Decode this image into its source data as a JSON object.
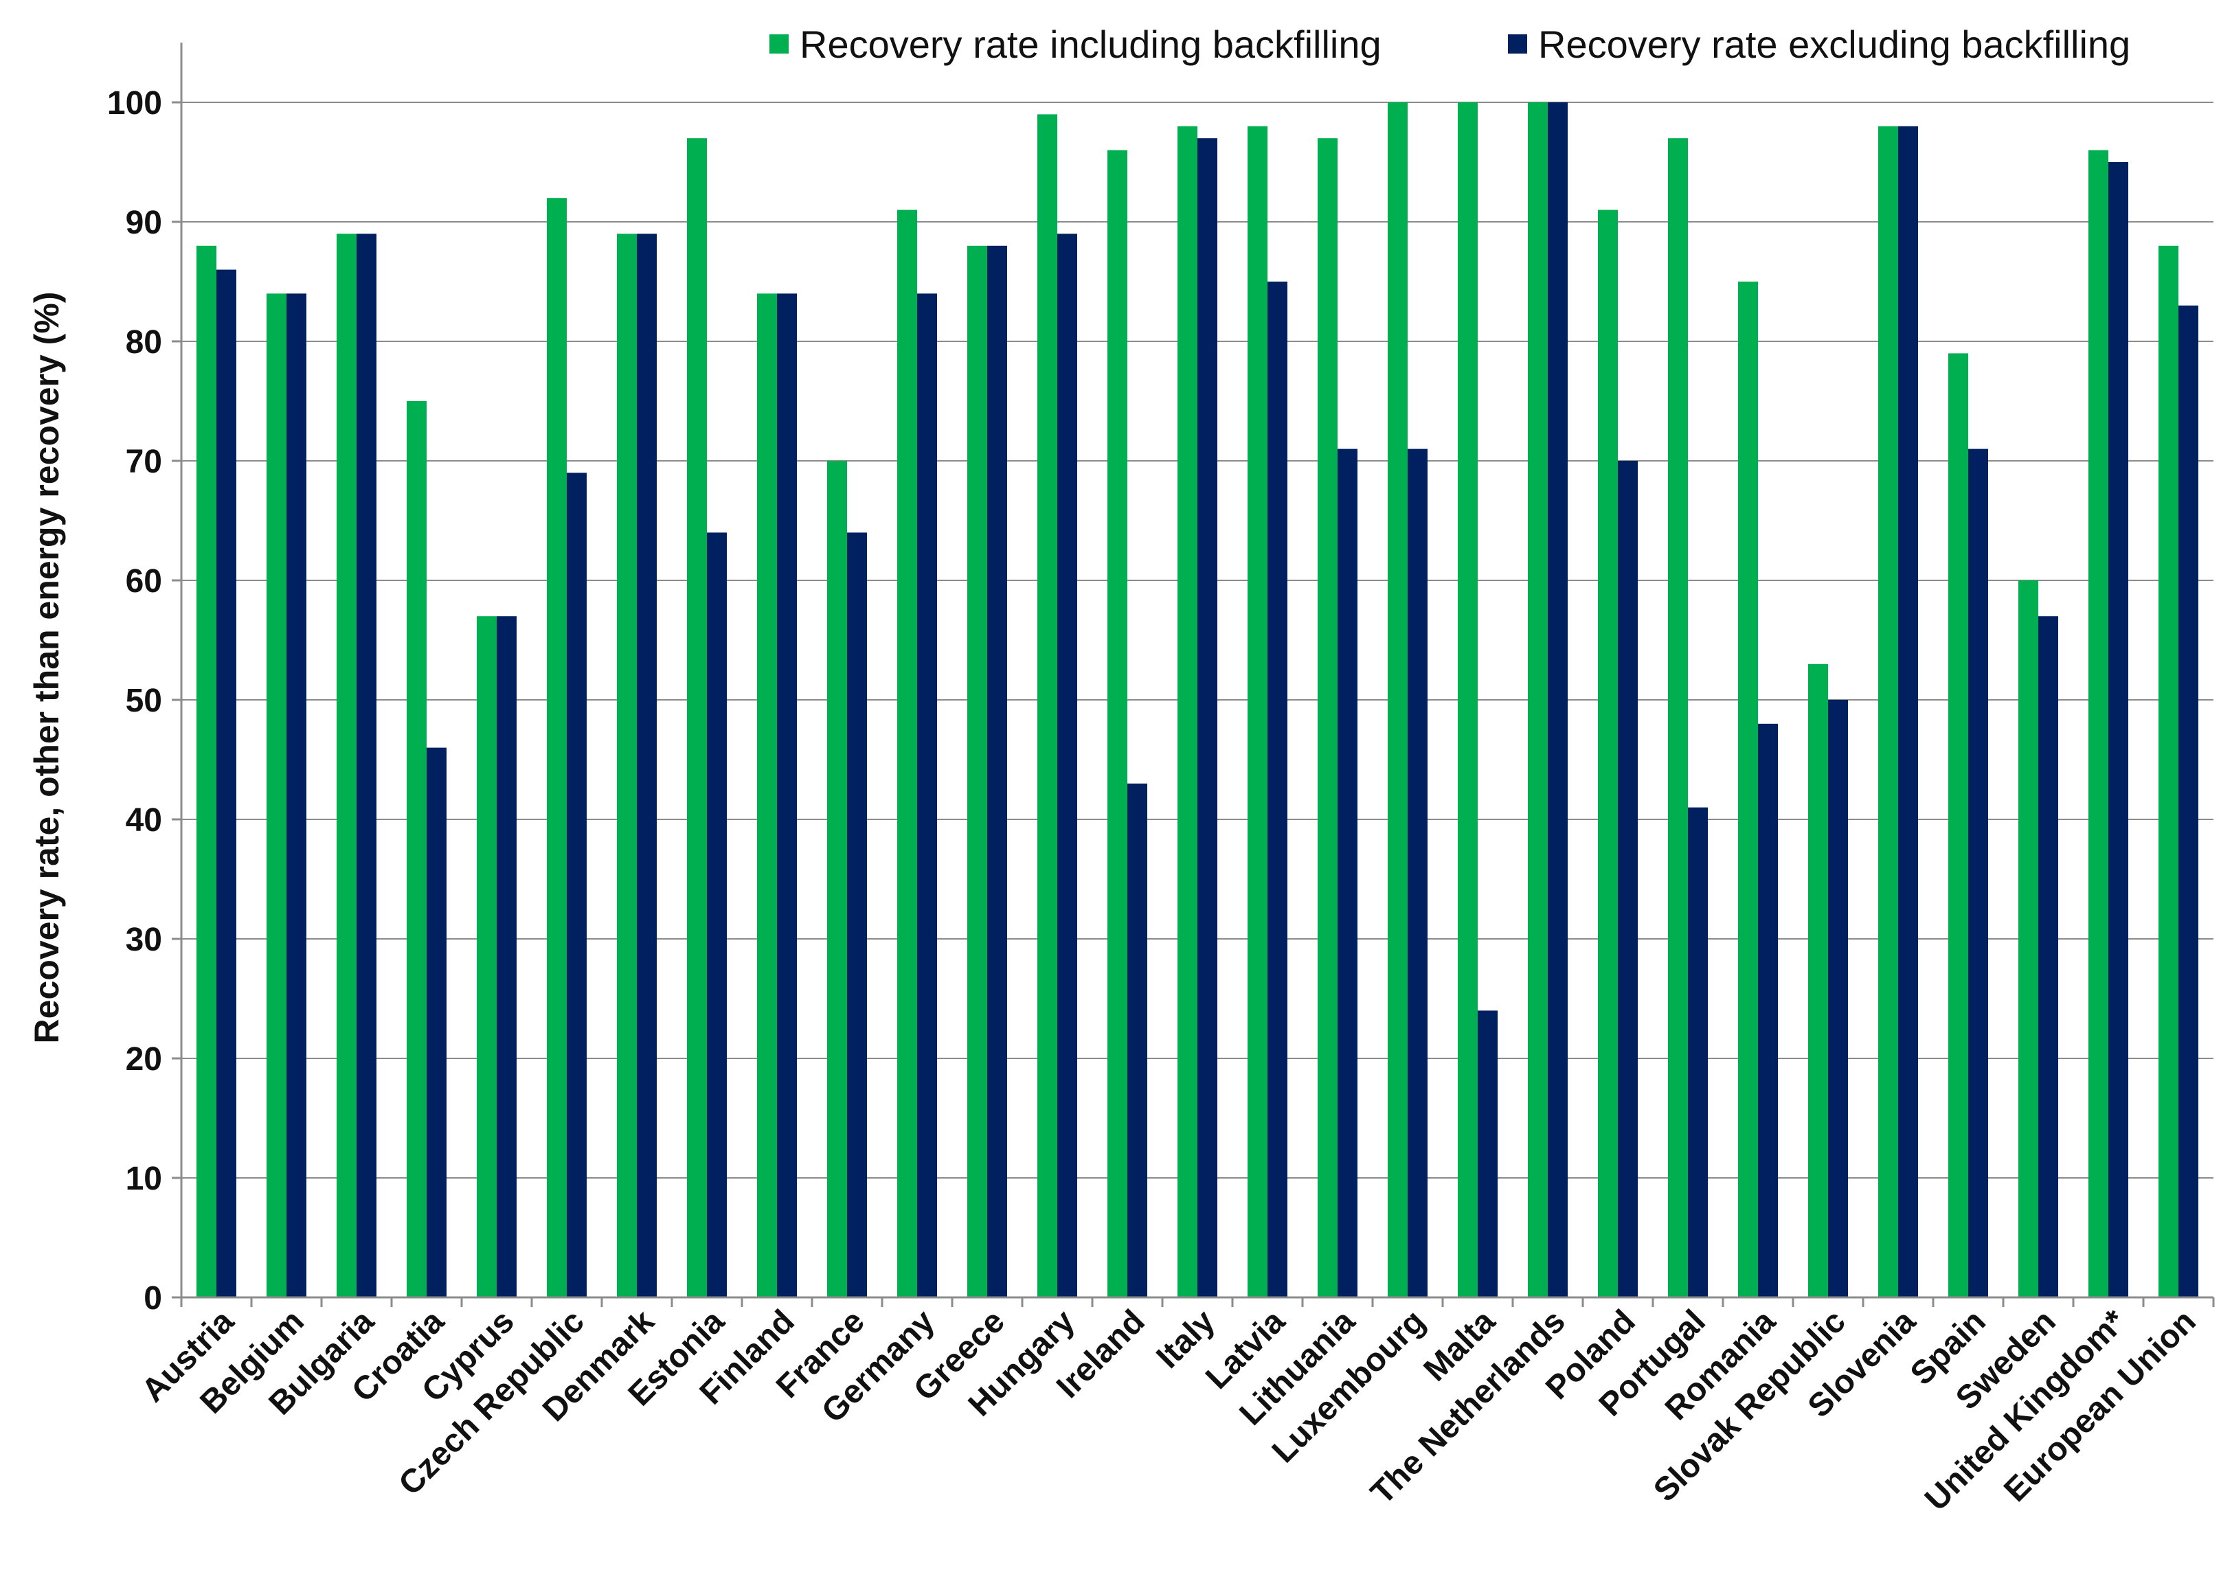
{
  "chart_data": {
    "type": "bar",
    "title": "",
    "xlabel": "",
    "ylabel": "Recovery rate, other than energy recovery (%)",
    "ylim": [
      0,
      105
    ],
    "yticks": [
      0,
      10,
      20,
      30,
      40,
      50,
      60,
      70,
      80,
      90,
      100
    ],
    "grid": true,
    "legend_position": "top",
    "categories": [
      "Austria",
      "Belgium",
      "Bulgaria",
      "Croatia",
      "Cyprus",
      "Czech Republic",
      "Denmark",
      "Estonia",
      "Finland",
      "France",
      "Germany",
      "Greece",
      "Hungary",
      "Ireland",
      "Italy",
      "Latvia",
      "Lithuania",
      "Luxembourg",
      "Malta",
      "The Netherlands",
      "Poland",
      "Portugal",
      "Romania",
      "Slovak Republic",
      "Slovenia",
      "Spain",
      "Sweden",
      "United Kingdom*",
      "European Union"
    ],
    "series": [
      {
        "name": "Recovery rate including backfilling",
        "color": "#00b050",
        "values": [
          88,
          84,
          89,
          75,
          57,
          92,
          89,
          97,
          84,
          70,
          91,
          88,
          99,
          96,
          98,
          98,
          97,
          100,
          100,
          100,
          91,
          97,
          85,
          53,
          98,
          79,
          60,
          96,
          88
        ]
      },
      {
        "name": "Recovery rate excluding backfilling",
        "color": "#002060",
        "values": [
          86,
          84,
          89,
          46,
          57,
          69,
          89,
          64,
          84,
          64,
          84,
          88,
          89,
          43,
          97,
          85,
          71,
          71,
          24,
          100,
          70,
          41,
          48,
          50,
          98,
          71,
          57,
          95,
          83
        ]
      }
    ]
  }
}
